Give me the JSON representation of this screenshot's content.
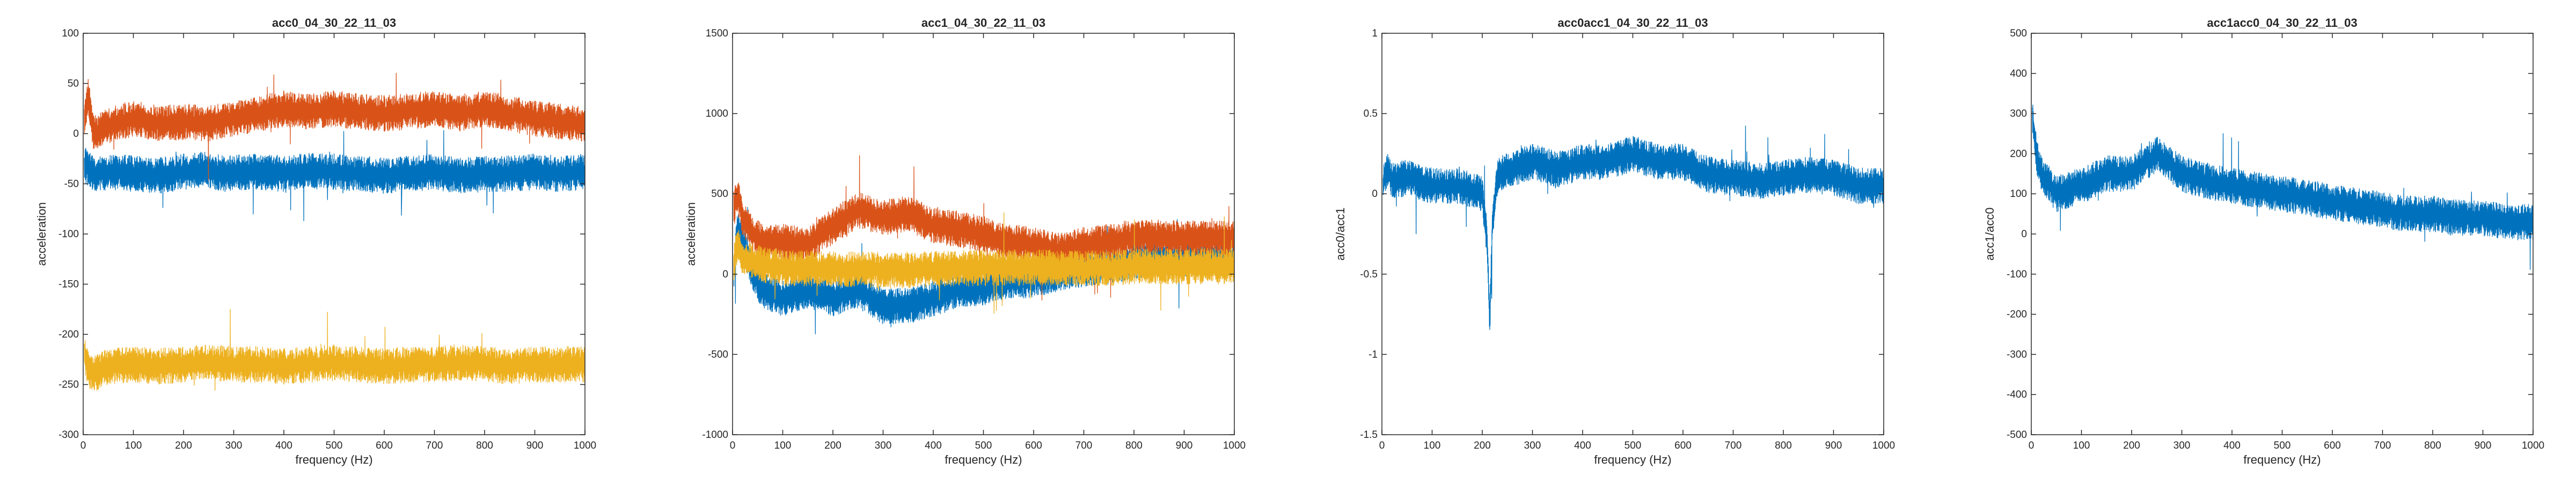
{
  "figure": {
    "background": "#ffffff"
  },
  "colors": {
    "blue": "#0072BD",
    "orange": "#D95319",
    "yellow": "#EDB120",
    "axis": "#262626"
  },
  "chart_data": [
    {
      "type": "line",
      "title": "acc0_04_30_22_11_03",
      "xlabel": "frequency (Hz)",
      "ylabel": "acceleration",
      "xlim": [
        0,
        1000
      ],
      "ylim": [
        -300,
        100
      ],
      "xticks": [
        0,
        100,
        200,
        300,
        400,
        500,
        600,
        700,
        800,
        900,
        1000
      ],
      "yticks": [
        -300,
        -250,
        -200,
        -150,
        -100,
        -50,
        0,
        50,
        100
      ],
      "grid": false,
      "series": [
        {
          "color": "#0072BD",
          "x": [
            2,
            20,
            60,
            100,
            150,
            200,
            240,
            280,
            350,
            400,
            450,
            500,
            550,
            600,
            650,
            700,
            750,
            800,
            850,
            900,
            950,
            1000
          ],
          "y": [
            -30,
            -40,
            -38,
            -40,
            -42,
            -38,
            -35,
            -40,
            -38,
            -40,
            -37,
            -38,
            -40,
            -42,
            -40,
            -38,
            -42,
            -40,
            -40,
            -38,
            -40,
            -38
          ]
        },
        {
          "color": "#D95319",
          "x": [
            2,
            10,
            20,
            40,
            60,
            100,
            150,
            200,
            250,
            300,
            350,
            400,
            450,
            500,
            550,
            600,
            650,
            700,
            750,
            800,
            850,
            900,
            950,
            1000
          ],
          "y": [
            10,
            40,
            0,
            5,
            10,
            15,
            10,
            12,
            10,
            15,
            20,
            25,
            22,
            25,
            22,
            20,
            22,
            25,
            20,
            25,
            20,
            15,
            12,
            10
          ]
        },
        {
          "color": "#EDB120",
          "x": [
            2,
            10,
            20,
            50,
            100,
            150,
            200,
            250,
            300,
            350,
            400,
            450,
            500,
            550,
            600,
            650,
            700,
            750,
            800,
            850,
            900,
            950,
            1000
          ],
          "y": [
            -220,
            -235,
            -240,
            -232,
            -230,
            -232,
            -230,
            -228,
            -230,
            -230,
            -232,
            -230,
            -228,
            -230,
            -232,
            -230,
            -230,
            -228,
            -230,
            -232,
            -230,
            -230,
            -230
          ]
        }
      ]
    },
    {
      "type": "line",
      "title": "acc1_04_30_22_11_03",
      "xlabel": "frequency (Hz)",
      "ylabel": "acceleration",
      "xlim": [
        0,
        1000
      ],
      "ylim": [
        -1000,
        1500
      ],
      "xticks": [
        0,
        100,
        200,
        300,
        400,
        500,
        600,
        700,
        800,
        900,
        1000
      ],
      "yticks": [
        -1000,
        -500,
        0,
        500,
        1000,
        1500
      ],
      "grid": false,
      "series": [
        {
          "color": "#0072BD",
          "x": [
            2,
            10,
            20,
            40,
            60,
            100,
            150,
            200,
            250,
            300,
            350,
            400,
            450,
            500,
            550,
            600,
            650,
            700,
            750,
            800,
            850,
            900,
            950,
            1000
          ],
          "y": [
            0,
            300,
            200,
            0,
            -100,
            -150,
            -100,
            -150,
            -100,
            -200,
            -200,
            -150,
            -100,
            -80,
            -50,
            -30,
            0,
            30,
            50,
            80,
            100,
            100,
            100,
            100
          ]
        },
        {
          "color": "#D95319",
          "x": [
            2,
            10,
            20,
            40,
            60,
            100,
            150,
            200,
            250,
            300,
            350,
            400,
            450,
            500,
            550,
            600,
            650,
            700,
            750,
            800,
            850,
            900,
            950,
            1000
          ],
          "y": [
            400,
            500,
            350,
            250,
            200,
            200,
            180,
            300,
            400,
            350,
            380,
            300,
            280,
            250,
            200,
            180,
            150,
            180,
            200,
            230,
            230,
            220,
            220,
            220
          ]
        },
        {
          "color": "#EDB120",
          "x": [
            2,
            10,
            20,
            40,
            60,
            100,
            150,
            200,
            250,
            300,
            350,
            400,
            450,
            500,
            550,
            600,
            650,
            700,
            750,
            800,
            850,
            900,
            950,
            1000
          ],
          "y": [
            50,
            200,
            100,
            80,
            60,
            40,
            35,
            30,
            30,
            25,
            25,
            30,
            35,
            40,
            40,
            40,
            40,
            35,
            40,
            45,
            45,
            50,
            50,
            50
          ]
        }
      ]
    },
    {
      "type": "line",
      "title": "acc0acc1_04_30_22_11_03",
      "xlabel": "frequency (Hz)",
      "ylabel": "acc0/acc1",
      "xlim": [
        0,
        1000
      ],
      "ylim": [
        -1.5,
        1
      ],
      "xticks": [
        0,
        100,
        200,
        300,
        400,
        500,
        600,
        700,
        800,
        900,
        1000
      ],
      "yticks": [
        -1.5,
        -1,
        -0.5,
        0,
        0.5,
        1
      ],
      "grid": false,
      "series": [
        {
          "color": "#0072BD",
          "x": [
            2,
            10,
            20,
            50,
            100,
            150,
            200,
            210,
            215,
            220,
            230,
            250,
            300,
            350,
            400,
            450,
            500,
            550,
            600,
            650,
            700,
            750,
            800,
            850,
            900,
            950,
            1000
          ],
          "y": [
            0.05,
            0.15,
            0.08,
            0.1,
            0.05,
            0.05,
            0.0,
            -0.3,
            -0.8,
            -0.2,
            0.1,
            0.15,
            0.2,
            0.15,
            0.2,
            0.2,
            0.25,
            0.2,
            0.2,
            0.12,
            0.1,
            0.08,
            0.1,
            0.12,
            0.1,
            0.05,
            0.05
          ]
        }
      ]
    },
    {
      "type": "line",
      "title": "acc1acc0_04_30_22_11_03",
      "xlabel": "frequency (Hz)",
      "ylabel": "acc1/acc0",
      "xlim": [
        0,
        1000
      ],
      "ylim": [
        -500,
        500
      ],
      "xticks": [
        0,
        100,
        200,
        300,
        400,
        500,
        600,
        700,
        800,
        900,
        1000
      ],
      "yticks": [
        -500,
        -400,
        -300,
        -200,
        -100,
        0,
        100,
        200,
        300,
        400,
        500
      ],
      "grid": false,
      "series": [
        {
          "color": "#0072BD",
          "x": [
            2,
            10,
            20,
            50,
            100,
            150,
            200,
            250,
            270,
            300,
            350,
            400,
            450,
            500,
            550,
            600,
            650,
            700,
            750,
            800,
            850,
            900,
            950,
            1000
          ],
          "y": [
            300,
            200,
            150,
            100,
            120,
            150,
            150,
            200,
            180,
            150,
            130,
            120,
            110,
            100,
            90,
            80,
            70,
            60,
            50,
            50,
            40,
            40,
            30,
            30
          ]
        }
      ]
    }
  ]
}
